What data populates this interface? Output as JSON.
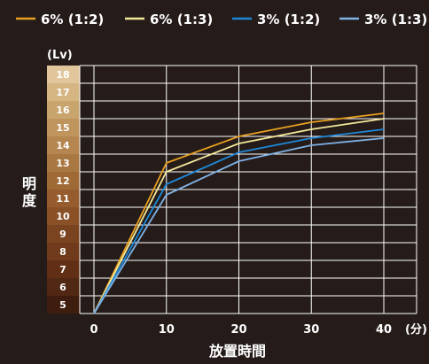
{
  "chart_data": {
    "type": "line",
    "ylabel": "明度",
    "yunit": "(Lv)",
    "xlabel": "放置時間",
    "xunit": "(分)",
    "x": [
      0,
      10,
      20,
      30,
      40
    ],
    "xticks": [
      0,
      10,
      20,
      30,
      40
    ],
    "ylim": [
      4.5,
      18.5
    ],
    "yticks": [
      5,
      6,
      7,
      8,
      9,
      10,
      11,
      12,
      13,
      14,
      15,
      16,
      17,
      18
    ],
    "grid": true,
    "legend_position": "top",
    "series": [
      {
        "name": "6% (1:2)",
        "color": "#e8a020",
        "values": [
          4.5,
          13.0,
          14.5,
          15.3,
          15.8
        ]
      },
      {
        "name": "6% (1:3)",
        "color": "#f3e89a",
        "values": [
          4.5,
          12.5,
          14.1,
          14.9,
          15.5
        ]
      },
      {
        "name": "3% (1:2)",
        "color": "#1e88d8",
        "values": [
          4.5,
          11.8,
          13.6,
          14.4,
          14.9
        ]
      },
      {
        "name": "3% (1:3)",
        "color": "#7fb2e6",
        "values": [
          4.5,
          11.2,
          13.1,
          14.0,
          14.4
        ]
      }
    ],
    "level_colors": {
      "5": "#3f1d0e",
      "6": "#502813",
      "7": "#612f16",
      "8": "#6f3b1c",
      "9": "#7b4420",
      "10": "#8a5127",
      "11": "#965c2e",
      "12": "#a06a36",
      "13": "#a97742",
      "14": "#b5864f",
      "15": "#bf955d",
      "16": "#c9a56e",
      "17": "#d5b582",
      "18": "#e1c69c"
    },
    "colors": {
      "background": "#251c1a",
      "grid": "#ffffff",
      "text": "#ffffff"
    }
  }
}
